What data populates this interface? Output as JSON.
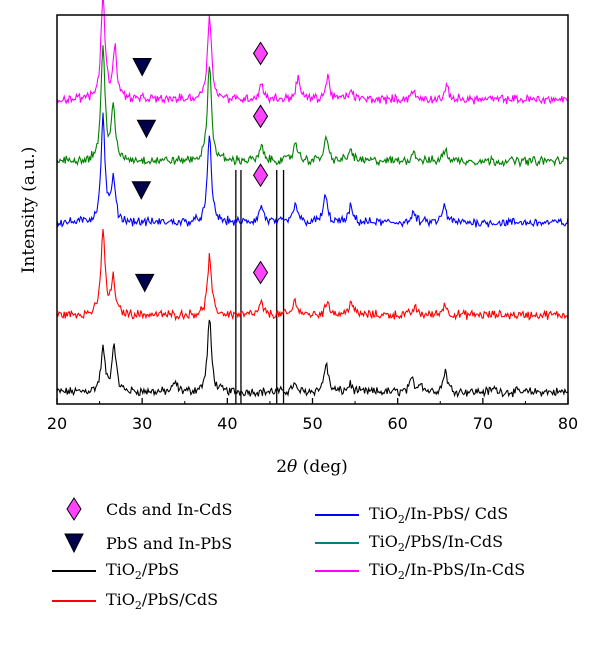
{
  "chart_data": {
    "type": "line",
    "xlabel_prefix": "2",
    "xlabel_symbol": "θ",
    "xlabel_suffix": " (deg)",
    "ylabel": "Intensity (a.u.)",
    "xlim": [
      20,
      80
    ],
    "x_ticks": [
      20,
      30,
      40,
      50,
      60,
      70,
      80
    ],
    "grid": false,
    "legend_position": "bottom",
    "series": [
      {
        "id": "tio2_pbs",
        "name_parts": [
          "TiO",
          "2",
          "/PbS"
        ],
        "color": "#000000",
        "baseline": 0.0,
        "peaks": [
          [
            25.4,
            0.55
          ],
          [
            26.7,
            0.62
          ],
          [
            33.9,
            0.12
          ],
          [
            37.9,
            0.95
          ],
          [
            47.8,
            0.1
          ],
          [
            51.6,
            0.38
          ],
          [
            54.4,
            0.1
          ],
          [
            61.7,
            0.16
          ],
          [
            62.7,
            0.12
          ],
          [
            65.6,
            0.28
          ],
          [
            71.3,
            0.05
          ]
        ]
      },
      {
        "id": "tio2_pbs_cds",
        "name_parts": [
          "TiO",
          "2",
          "/PbS/CdS"
        ],
        "color": "#ff0000",
        "baseline": 1.0,
        "peaks": [
          [
            25.4,
            1.1
          ],
          [
            26.6,
            0.45
          ],
          [
            37.9,
            0.75
          ],
          [
            44.0,
            0.15
          ],
          [
            48.0,
            0.2
          ],
          [
            51.8,
            0.18
          ],
          [
            54.5,
            0.18
          ],
          [
            62.0,
            0.1
          ],
          [
            65.5,
            0.14
          ]
        ]
      },
      {
        "id": "tio2_inpbs_cds",
        "name_parts": [
          "TiO",
          "2",
          "/In-PbS/ CdS"
        ],
        "color": "#0000ff",
        "baseline": 2.2,
        "peaks": [
          [
            25.4,
            1.35
          ],
          [
            26.6,
            0.55
          ],
          [
            37.9,
            1.12
          ],
          [
            44.0,
            0.22
          ],
          [
            48.0,
            0.25
          ],
          [
            51.5,
            0.35
          ],
          [
            54.5,
            0.2
          ],
          [
            61.9,
            0.12
          ],
          [
            65.5,
            0.22
          ]
        ]
      },
      {
        "id": "tio2_pbs_incds",
        "name_parts": [
          "TiO",
          "2",
          "/PbS/In-CdS"
        ],
        "color": "#008000",
        "baseline": 3.0,
        "peaks": [
          [
            25.4,
            1.45
          ],
          [
            26.6,
            0.65
          ],
          [
            37.9,
            1.28
          ],
          [
            44.0,
            0.18
          ],
          [
            48.0,
            0.25
          ],
          [
            51.6,
            0.3
          ],
          [
            54.5,
            0.15
          ],
          [
            61.9,
            0.12
          ],
          [
            65.6,
            0.15
          ]
        ]
      },
      {
        "id": "tio2_inpbs_incds",
        "name_parts": [
          "TiO",
          "2",
          "/In-PbS/In-CdS"
        ],
        "color": "#ff00ff",
        "baseline": 3.8,
        "peaks": [
          [
            25.4,
            1.35
          ],
          [
            26.8,
            0.65
          ],
          [
            37.9,
            1.12
          ],
          [
            44.0,
            0.2
          ],
          [
            48.3,
            0.28
          ],
          [
            51.8,
            0.28
          ],
          [
            54.5,
            0.12
          ],
          [
            61.8,
            0.1
          ],
          [
            65.8,
            0.15
          ]
        ]
      }
    ],
    "ref_lines_x": [
      41.0,
      41.6,
      45.8,
      46.6
    ],
    "markers": [
      {
        "type": "diamond",
        "series": "tio2_inpbs_incds",
        "x": 43.9
      },
      {
        "type": "diamond",
        "series": "tio2_pbs_incds",
        "x": 43.9
      },
      {
        "type": "diamond",
        "series": "tio2_inpbs_cds",
        "x": 43.9
      },
      {
        "type": "diamond",
        "series": "tio2_pbs_cds",
        "x": 43.9
      },
      {
        "type": "triangle",
        "series": "tio2_inpbs_incds",
        "x": 30.0
      },
      {
        "type": "triangle",
        "series": "tio2_pbs_incds",
        "x": 30.5
      },
      {
        "type": "triangle",
        "series": "tio2_inpbs_cds",
        "x": 29.9
      },
      {
        "type": "triangle",
        "series": "tio2_pbs_cds",
        "x": 30.3
      }
    ],
    "marker_legend": [
      {
        "type": "diamond",
        "label": "Cds and In-CdS",
        "color": "#ff44ff"
      },
      {
        "type": "triangle",
        "label": "PbS and In-PbS",
        "color": "#00004d"
      }
    ]
  }
}
